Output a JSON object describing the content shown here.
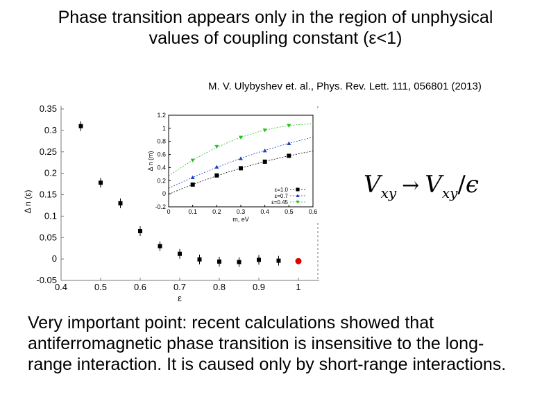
{
  "slide": {
    "title_line1": "Phase transition appears only in the region of unphysical",
    "title_line2": "values of coupling constant (ε<1)",
    "citation": "M. V. Ulybyshev et. al., Phys. Rev. Lett. 111, 056801 (2013)",
    "formula": {
      "v1": "V",
      "sub1": "xy",
      "arrow": "→",
      "v2": "V",
      "sub2": "xy",
      "slash": "/",
      "eps": "ϵ"
    },
    "note": "Very important point: recent calculations showed that antiferromagnetic phase transition is insensitive to the long-range interaction. It is caused only by short-range interactions."
  },
  "chart_data": [
    {
      "type": "scatter",
      "title": "",
      "xlabel": "ε",
      "ylabel": "Δ n (ε)",
      "xlim": [
        0.4,
        1.0
      ],
      "ylim": [
        -0.05,
        0.35
      ],
      "xticks": [
        "0.4",
        "0.5",
        "0.6",
        "0.7",
        "0.8",
        "0.9",
        "1"
      ],
      "yticks": [
        "-0.05",
        "0",
        "0.05",
        "0.1",
        "0.15",
        "0.2",
        "0.25",
        "0.3",
        "0.35"
      ],
      "series": [
        {
          "x": [
            0.45,
            0.5,
            0.55,
            0.6,
            0.65,
            0.7,
            0.75,
            0.8,
            0.85,
            0.9,
            0.95
          ],
          "values": [
            0.31,
            0.178,
            0.13,
            0.065,
            0.03,
            0.012,
            -0.001,
            -0.006,
            -0.007,
            -0.002,
            -0.004
          ],
          "color": "#000000",
          "marker": "square"
        },
        {
          "x": [
            1.0
          ],
          "values": [
            -0.005
          ],
          "color": "#e00000",
          "marker": "circle"
        }
      ],
      "grid": false
    },
    {
      "type": "scatter",
      "title": "",
      "xlabel": "m, eV",
      "ylabel": "Δ n (m)",
      "xlim": [
        0,
        0.6
      ],
      "ylim": [
        -0.2,
        1.2
      ],
      "xticks": [
        "0",
        "0.1",
        "0.2",
        "0.3",
        "0.4",
        "0.5",
        "0.6"
      ],
      "yticks": [
        "-0.2",
        "0",
        "0.2",
        "0.4",
        "0.6",
        "0.8",
        "1",
        "1.2"
      ],
      "legend": "bottom-right",
      "series": [
        {
          "name": "ε=1.0",
          "x": [
            0.1,
            0.2,
            0.3,
            0.4,
            0.5
          ],
          "values": [
            0.14,
            0.28,
            0.39,
            0.49,
            0.58
          ],
          "color": "#000000",
          "marker": "square"
        },
        {
          "name": "ε=0.7",
          "x": [
            0.1,
            0.2,
            0.3,
            0.4,
            0.5
          ],
          "values": [
            0.25,
            0.41,
            0.54,
            0.66,
            0.77
          ],
          "color": "#1f3fbf",
          "marker": "triangle-up"
        },
        {
          "name": "ε=0.45",
          "x": [
            0.1,
            0.2,
            0.3,
            0.4,
            0.5
          ],
          "values": [
            0.51,
            0.72,
            0.86,
            0.97,
            1.04
          ],
          "color": "#20c020",
          "marker": "triangle-down"
        }
      ],
      "grid": false
    }
  ]
}
